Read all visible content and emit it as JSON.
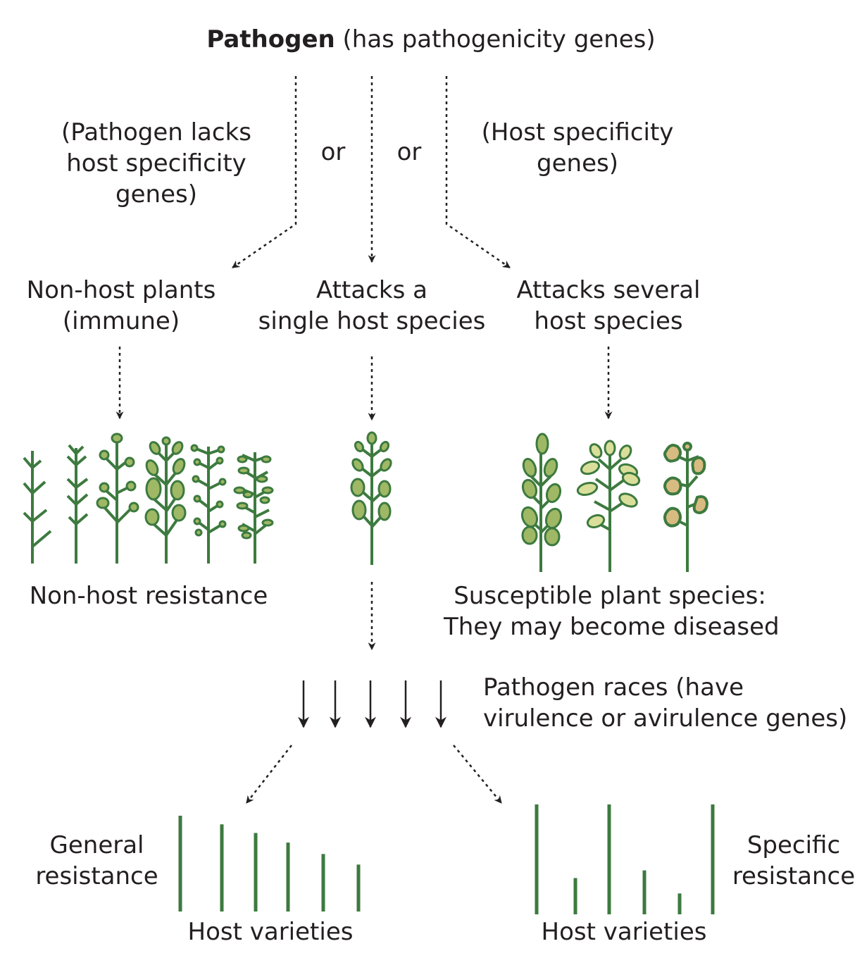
{
  "title": {
    "bold": "Pathogen",
    "rest": " (has pathogenicity genes)"
  },
  "branch_notes": {
    "left": [
      "(Pathogen lacks",
      "host specificity",
      "genes)"
    ],
    "or_1": "or",
    "or_2": "or",
    "right": [
      "(Host specificity",
      "genes)"
    ]
  },
  "outcomes": {
    "non_host": [
      "Non-host plants",
      "(immune)"
    ],
    "single_host": [
      "Attacks a",
      "single host species"
    ],
    "several_hosts": [
      "Attacks several",
      "host species"
    ]
  },
  "captions": {
    "non_host_resistance": "Non-host resistance",
    "susceptible": [
      "Susceptible plant species:",
      "They may become diseased"
    ]
  },
  "races": [
    "Pathogen races (have",
    "virulence or avirulence genes)"
  ],
  "resistance": {
    "general": [
      "General",
      "resistance"
    ],
    "specific": [
      "Specific",
      "resistance"
    ],
    "host_varieties_left": "Host varieties",
    "host_varieties_right": "Host varieties"
  },
  "bars": {
    "general": [
      1.0,
      0.91,
      0.82,
      0.72,
      0.6,
      0.49
    ],
    "specific": [
      1.0,
      0.33,
      1.0,
      0.4,
      0.19,
      1.0
    ]
  },
  "colors": {
    "stem": "#3d7a3f",
    "leaf_fill": "#9fb865",
    "leaf_light": "#d9df9a",
    "lesion": "#d8bb80",
    "arrow": "#231f20",
    "text": "#231f20"
  }
}
